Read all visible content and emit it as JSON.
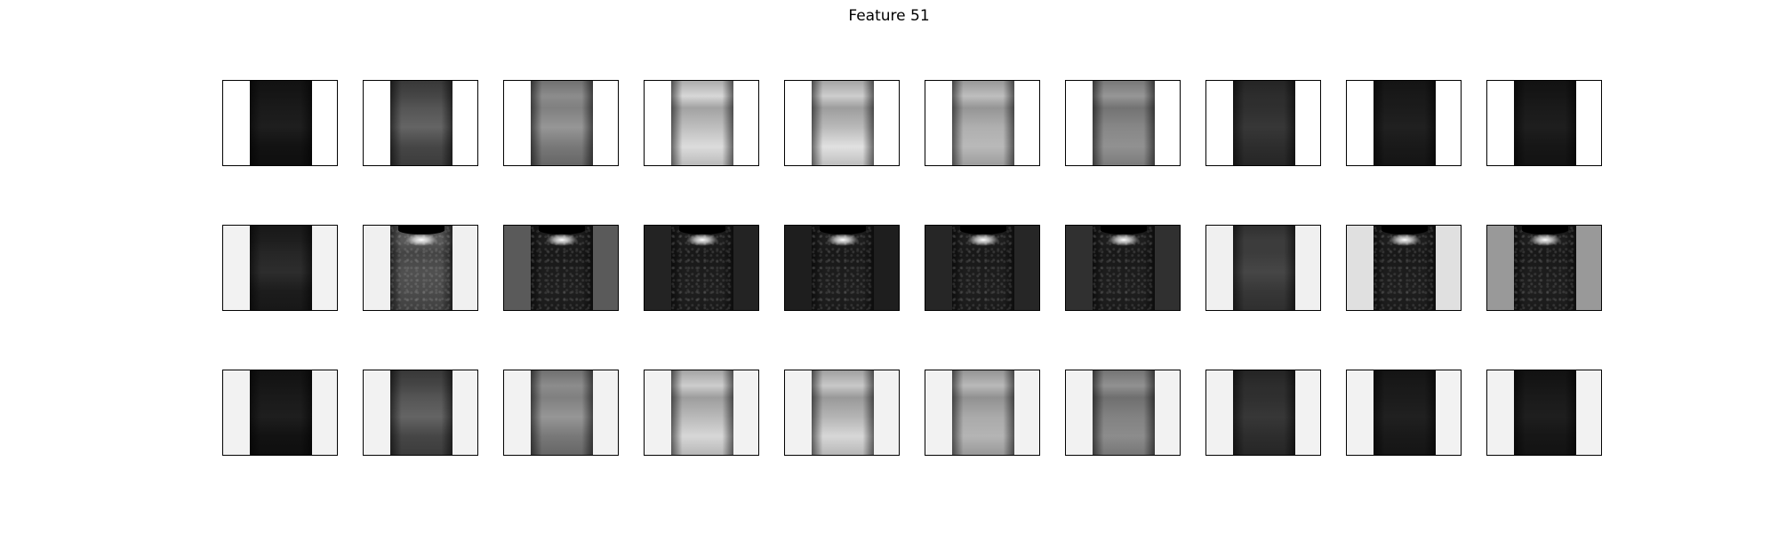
{
  "figure": {
    "title": "Feature 51"
  },
  "grid": {
    "rows": 3,
    "columns": 10
  },
  "panels": [
    [
      {
        "bg": "#ffffff",
        "top": 22,
        "mid": 30,
        "bot": 18,
        "kind": "smooth"
      },
      {
        "bg": "#ffffff",
        "top": 70,
        "mid": 100,
        "bot": 70,
        "kind": "smooth"
      },
      {
        "bg": "#ffffff",
        "top": 140,
        "mid": 150,
        "bot": 120,
        "kind": "smooth"
      },
      {
        "bg": "#ffffff",
        "top": 215,
        "mid": 190,
        "bot": 220,
        "kind": "smooth"
      },
      {
        "bg": "#ffffff",
        "top": 205,
        "mid": 185,
        "bot": 225,
        "kind": "smooth"
      },
      {
        "bg": "#ffffff",
        "top": 190,
        "mid": 175,
        "bot": 185,
        "kind": "smooth"
      },
      {
        "bg": "#ffffff",
        "top": 150,
        "mid": 135,
        "bot": 145,
        "kind": "smooth"
      },
      {
        "bg": "#ffffff",
        "top": 45,
        "mid": 55,
        "bot": 45,
        "kind": "smooth"
      },
      {
        "bg": "#ffffff",
        "top": 25,
        "mid": 32,
        "bot": 25,
        "kind": "smooth"
      },
      {
        "bg": "#ffffff",
        "top": 22,
        "mid": 30,
        "bot": 22,
        "kind": "smooth"
      }
    ],
    [
      {
        "bg": "#f2f2f2",
        "top": 30,
        "mid": 45,
        "bot": 28,
        "kind": "smooth"
      },
      {
        "bg": "#f0f0f0",
        "top": 90,
        "mid": 80,
        "bot": 75,
        "kind": "textured"
      },
      {
        "bg": "#5a5a5a",
        "top": 30,
        "mid": 28,
        "bot": 30,
        "kind": "textured"
      },
      {
        "bg": "#232323",
        "top": 30,
        "mid": 28,
        "bot": 30,
        "kind": "textured"
      },
      {
        "bg": "#1e1e1e",
        "top": 30,
        "mid": 28,
        "bot": 30,
        "kind": "textured"
      },
      {
        "bg": "#262626",
        "top": 30,
        "mid": 28,
        "bot": 30,
        "kind": "textured"
      },
      {
        "bg": "#303030",
        "top": 30,
        "mid": 28,
        "bot": 30,
        "kind": "textured"
      },
      {
        "bg": "#f0f0f0",
        "top": 60,
        "mid": 70,
        "bot": 55,
        "kind": "smooth"
      },
      {
        "bg": "#e0e0e0",
        "top": 30,
        "mid": 28,
        "bot": 30,
        "kind": "textured"
      },
      {
        "bg": "#999999",
        "top": 30,
        "mid": 28,
        "bot": 30,
        "kind": "textured"
      }
    ],
    [
      {
        "bg": "#f2f2f2",
        "top": 22,
        "mid": 30,
        "bot": 18,
        "kind": "smooth"
      },
      {
        "bg": "#f2f2f2",
        "top": 70,
        "mid": 100,
        "bot": 70,
        "kind": "smooth"
      },
      {
        "bg": "#f2f2f2",
        "top": 140,
        "mid": 150,
        "bot": 120,
        "kind": "smooth"
      },
      {
        "bg": "#f2f2f2",
        "top": 205,
        "mid": 185,
        "bot": 215,
        "kind": "smooth"
      },
      {
        "bg": "#f2f2f2",
        "top": 200,
        "mid": 180,
        "bot": 215,
        "kind": "smooth"
      },
      {
        "bg": "#f2f2f2",
        "top": 185,
        "mid": 170,
        "bot": 180,
        "kind": "smooth"
      },
      {
        "bg": "#f2f2f2",
        "top": 145,
        "mid": 130,
        "bot": 140,
        "kind": "smooth"
      },
      {
        "bg": "#f2f2f2",
        "top": 45,
        "mid": 55,
        "bot": 45,
        "kind": "smooth"
      },
      {
        "bg": "#f2f2f2",
        "top": 25,
        "mid": 32,
        "bot": 25,
        "kind": "smooth"
      },
      {
        "bg": "#f2f2f2",
        "top": 22,
        "mid": 30,
        "bot": 22,
        "kind": "smooth"
      }
    ]
  ]
}
